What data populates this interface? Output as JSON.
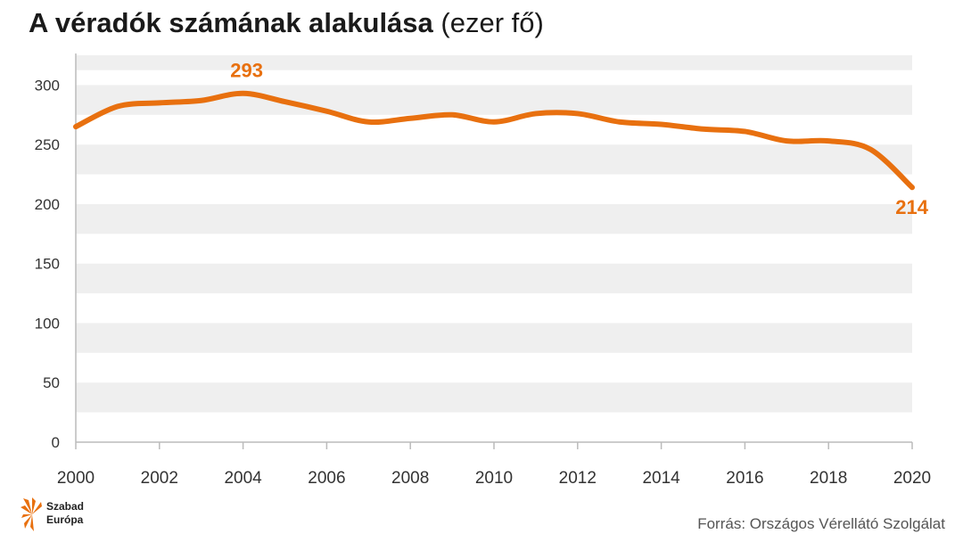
{
  "title": {
    "main": "A véradók számának alakulása",
    "unit": "(ezer fő)"
  },
  "source": "Forrás: Országos Vérellátó Szolgálat",
  "logo": {
    "line1": "Szabad",
    "line2": "Európa",
    "icon": "sunburst-logo-icon"
  },
  "colors": {
    "line": "#e8700f",
    "band": "#efefef",
    "axis": "#bbbbbb"
  },
  "chart_data": {
    "type": "line",
    "x": [
      2000,
      2001,
      2002,
      2003,
      2004,
      2005,
      2006,
      2007,
      2008,
      2009,
      2010,
      2011,
      2012,
      2013,
      2014,
      2015,
      2016,
      2017,
      2018,
      2019,
      2020
    ],
    "series": [
      {
        "values": [
          265,
          282,
          285,
          287,
          293,
          286,
          278,
          269,
          272,
          275,
          269,
          276,
          276,
          269,
          267,
          263,
          261,
          253,
          253,
          246,
          214
        ]
      }
    ],
    "ylim": [
      0,
      325
    ],
    "yticks": [
      0,
      50,
      100,
      150,
      200,
      250,
      300
    ],
    "xticks": [
      2000,
      2002,
      2004,
      2006,
      2008,
      2010,
      2012,
      2014,
      2016,
      2018,
      2020
    ],
    "annotations": [
      {
        "x": 2004,
        "y": 293,
        "text": "293"
      },
      {
        "x": 2020,
        "y": 214,
        "text": "214"
      }
    ],
    "grid": "alternating horizontal bands",
    "legend": "none"
  }
}
